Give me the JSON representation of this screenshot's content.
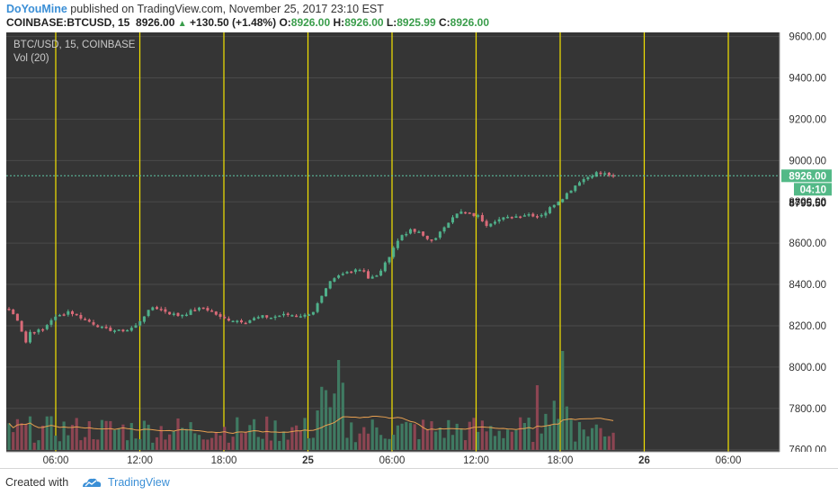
{
  "header": {
    "author": "DoYouMine",
    "published_text": " published on TradingView.com, November 25, 2017 23:10 EST",
    "symbol": "COINBASE:BTCUSD, 15",
    "last_price": "8926.00",
    "change": "+130.50 (+1.48%)",
    "open_label": "O:",
    "open": "8926.00",
    "high_label": "H:",
    "high": "8926.00",
    "low_label": "L:",
    "low": "8925.99",
    "close_label": "C:",
    "close": "8926.00"
  },
  "overlay": {
    "series_label": "BTC/USD, 15, COINBASE",
    "volume_label": "Vol (20)"
  },
  "footer": {
    "created_with": "Created with",
    "brand": "TradingView"
  },
  "colors": {
    "background": "#353535",
    "grid": "#4a4a4a",
    "up": "#4fb08a",
    "down": "#d96a78",
    "vline": "#f4e300",
    "ma": "#e8a050",
    "price_line": "#5fc7a6",
    "axis_bg": "#ffffff"
  },
  "chart_data": {
    "type": "candlestick",
    "y_axis": {
      "ticks": [
        7600,
        7800,
        8000,
        8200,
        8400,
        8600,
        8800,
        9000,
        9200,
        9400,
        9600
      ],
      "tick_labels": [
        "7600.00",
        "7800.00",
        "8000.00",
        "8200.00",
        "8400.00",
        "8600.00",
        "8800.00",
        "9000.00",
        "9200.00",
        "9400.00",
        "9600.00"
      ],
      "range": [
        7590,
        9620
      ]
    },
    "x_axis": {
      "ticks": [
        "06:00",
        "12:00",
        "18:00",
        "25",
        "06:00",
        "12:00",
        "18:00",
        "26",
        "06:00"
      ]
    },
    "price_labels": {
      "current": "8926.00",
      "countdown": "04:10",
      "marker": "8795.50"
    },
    "current_price": 8926.0,
    "marker_price": 8795.5,
    "vertical_lines_at_ticks": true,
    "path_points": [
      [
        0,
        8280
      ],
      [
        2,
        8230
      ],
      [
        4,
        8120
      ],
      [
        5,
        8170
      ],
      [
        8,
        8180
      ],
      [
        10,
        8230
      ],
      [
        12,
        8250
      ],
      [
        14,
        8270
      ],
      [
        16,
        8250
      ],
      [
        18,
        8230
      ],
      [
        20,
        8210
      ],
      [
        22,
        8190
      ],
      [
        24,
        8180
      ],
      [
        26,
        8175
      ],
      [
        28,
        8180
      ],
      [
        30,
        8200
      ],
      [
        32,
        8250
      ],
      [
        34,
        8290
      ],
      [
        36,
        8280
      ],
      [
        38,
        8260
      ],
      [
        40,
        8250
      ],
      [
        42,
        8260
      ],
      [
        44,
        8280
      ],
      [
        46,
        8285
      ],
      [
        48,
        8270
      ],
      [
        50,
        8240
      ],
      [
        52,
        8230
      ],
      [
        54,
        8225
      ],
      [
        56,
        8220
      ],
      [
        58,
        8235
      ],
      [
        60,
        8245
      ],
      [
        62,
        8240
      ],
      [
        64,
        8250
      ],
      [
        66,
        8255
      ],
      [
        68,
        8250
      ],
      [
        70,
        8250
      ],
      [
        72,
        8270
      ],
      [
        74,
        8340
      ],
      [
        76,
        8410
      ],
      [
        78,
        8440
      ],
      [
        80,
        8460
      ],
      [
        82,
        8475
      ],
      [
        84,
        8470
      ],
      [
        85,
        8430
      ],
      [
        87,
        8440
      ],
      [
        89,
        8500
      ],
      [
        91,
        8580
      ],
      [
        93,
        8640
      ],
      [
        95,
        8660
      ],
      [
        97,
        8650
      ],
      [
        99,
        8620
      ],
      [
        101,
        8620
      ],
      [
        103,
        8680
      ],
      [
        105,
        8730
      ],
      [
        107,
        8750
      ],
      [
        109,
        8740
      ],
      [
        111,
        8730
      ],
      [
        113,
        8690
      ],
      [
        115,
        8710
      ],
      [
        117,
        8720
      ],
      [
        119,
        8725
      ],
      [
        121,
        8735
      ],
      [
        123,
        8740
      ],
      [
        125,
        8730
      ],
      [
        127,
        8750
      ],
      [
        129,
        8790
      ],
      [
        131,
        8820
      ],
      [
        133,
        8860
      ],
      [
        135,
        8900
      ],
      [
        137,
        8920
      ],
      [
        139,
        8940
      ],
      [
        141,
        8935
      ],
      [
        143,
        8926
      ]
    ],
    "volume": {
      "ma_label": "Vol (20)",
      "ma_period": 20
    }
  }
}
